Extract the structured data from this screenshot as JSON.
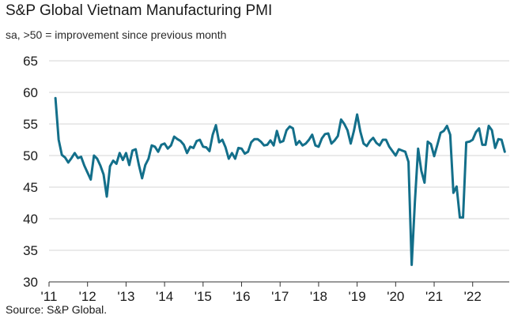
{
  "chart_data": {
    "type": "line",
    "title": "S&P Global Vietnam Manufacturing PMI",
    "subtitle": "sa, >50 = improvement since previous month",
    "source": "Source: S&P Global.",
    "xlabel": "",
    "ylabel": "",
    "ylim": [
      30,
      65
    ],
    "yticks": [
      65,
      60,
      55,
      50,
      45,
      40,
      35,
      30
    ],
    "xticks": [
      "'11",
      "'12",
      "'13",
      "'14",
      "'15",
      "'16",
      "'17",
      "'18",
      "'19",
      "'20",
      "'21",
      "'22"
    ],
    "xrange": [
      2011.0,
      2022.95
    ],
    "grid": true,
    "line_color": "#136f8a",
    "series": [
      {
        "name": "Vietnam Manufacturing PMI",
        "start": "2011-03",
        "values": [
          59.1,
          52.5,
          50.1,
          49.7,
          48.9,
          49.6,
          50.4,
          49.6,
          49.8,
          48.4,
          47.3,
          46.2,
          50.0,
          49.5,
          48.4,
          47.0,
          43.5,
          48.3,
          49.2,
          48.7,
          50.4,
          49.3,
          50.4,
          48.5,
          50.8,
          51.0,
          48.5,
          46.4,
          48.5,
          49.5,
          51.6,
          51.4,
          50.6,
          51.7,
          51.9,
          51.1,
          51.6,
          53.0,
          52.6,
          52.3,
          51.7,
          50.4,
          51.4,
          51.2,
          52.3,
          52.5,
          51.4,
          51.3,
          50.7,
          53.3,
          54.8,
          52.1,
          52.5,
          51.3,
          49.5,
          50.4,
          49.5,
          51.2,
          51.1,
          50.3,
          50.6,
          52.1,
          52.6,
          52.6,
          52.2,
          51.6,
          51.7,
          52.4,
          51.6,
          53.9,
          52.1,
          52.3,
          54.0,
          54.6,
          54.3,
          51.7,
          52.3,
          51.6,
          51.9,
          52.5,
          53.3,
          51.6,
          51.4,
          52.7,
          53.4,
          53.5,
          51.9,
          52.4,
          53.1,
          55.7,
          55.0,
          54.0,
          51.9,
          53.9,
          56.5,
          53.8,
          51.9,
          51.5,
          52.3,
          52.8,
          52.0,
          51.6,
          52.5,
          52.5,
          51.4,
          50.7,
          50.0,
          51.0,
          50.8,
          50.6,
          49.0,
          32.7,
          42.7,
          51.1,
          47.6,
          45.7,
          52.2,
          51.8,
          49.9,
          51.7,
          53.6,
          53.9,
          54.7,
          53.3,
          44.1,
          45.1,
          40.2,
          40.2,
          52.1,
          52.2,
          52.5,
          53.7,
          54.3,
          51.7,
          51.7,
          54.7,
          54.0,
          51.2,
          52.6,
          52.5,
          50.6
        ]
      }
    ]
  }
}
